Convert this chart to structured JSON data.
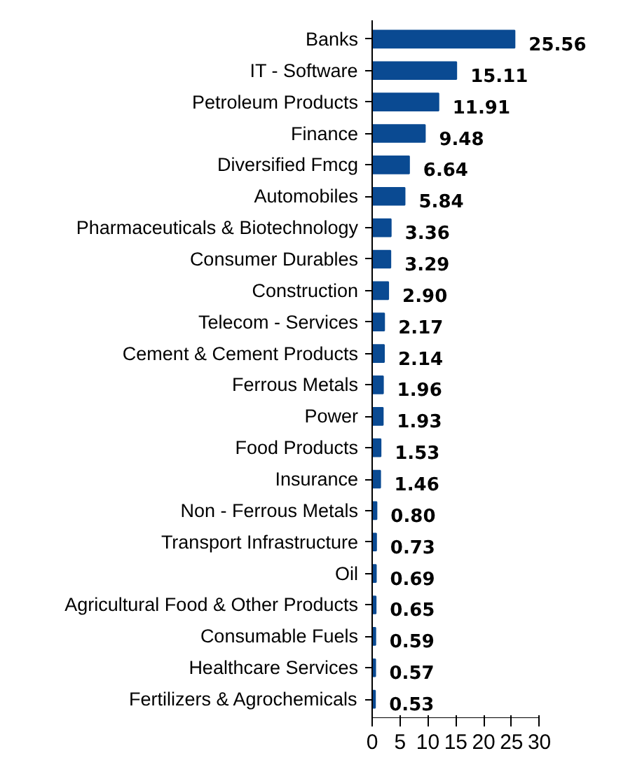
{
  "chart_data": {
    "type": "bar",
    "orientation": "horizontal",
    "categories": [
      "Banks",
      "IT - Software",
      "Petroleum Products",
      "Finance",
      "Diversified Fmcg",
      "Automobiles",
      "Pharmaceuticals & Biotechnology",
      "Consumer Durables",
      "Construction",
      "Telecom - Services",
      "Cement & Cement Products",
      "Ferrous Metals",
      "Power",
      "Food Products",
      "Insurance",
      "Non - Ferrous Metals",
      "Transport Infrastructure",
      "Oil",
      "Agricultural Food & Other Products",
      "Consumable Fuels",
      "Healthcare Services",
      "Fertilizers & Agrochemicals"
    ],
    "values": [
      25.56,
      15.11,
      11.91,
      9.48,
      6.64,
      5.84,
      3.36,
      3.29,
      2.9,
      2.17,
      2.14,
      1.96,
      1.93,
      1.53,
      1.46,
      0.8,
      0.73,
      0.69,
      0.65,
      0.59,
      0.57,
      0.53
    ],
    "color": "#0a4a92",
    "xlim": [
      0,
      30
    ],
    "xticks": [
      0,
      5,
      10,
      15,
      20,
      25,
      30
    ],
    "value_labels": [
      "25.56",
      "15.11",
      "11.91",
      "9.48",
      "6.64",
      "5.84",
      "3.36",
      "3.29",
      "2.90",
      "2.17",
      "2.14",
      "1.96",
      "1.93",
      "1.53",
      "1.46",
      "0.80",
      "0.73",
      "0.69",
      "0.65",
      "0.59",
      "0.57",
      "0.53"
    ],
    "grid": false
  }
}
